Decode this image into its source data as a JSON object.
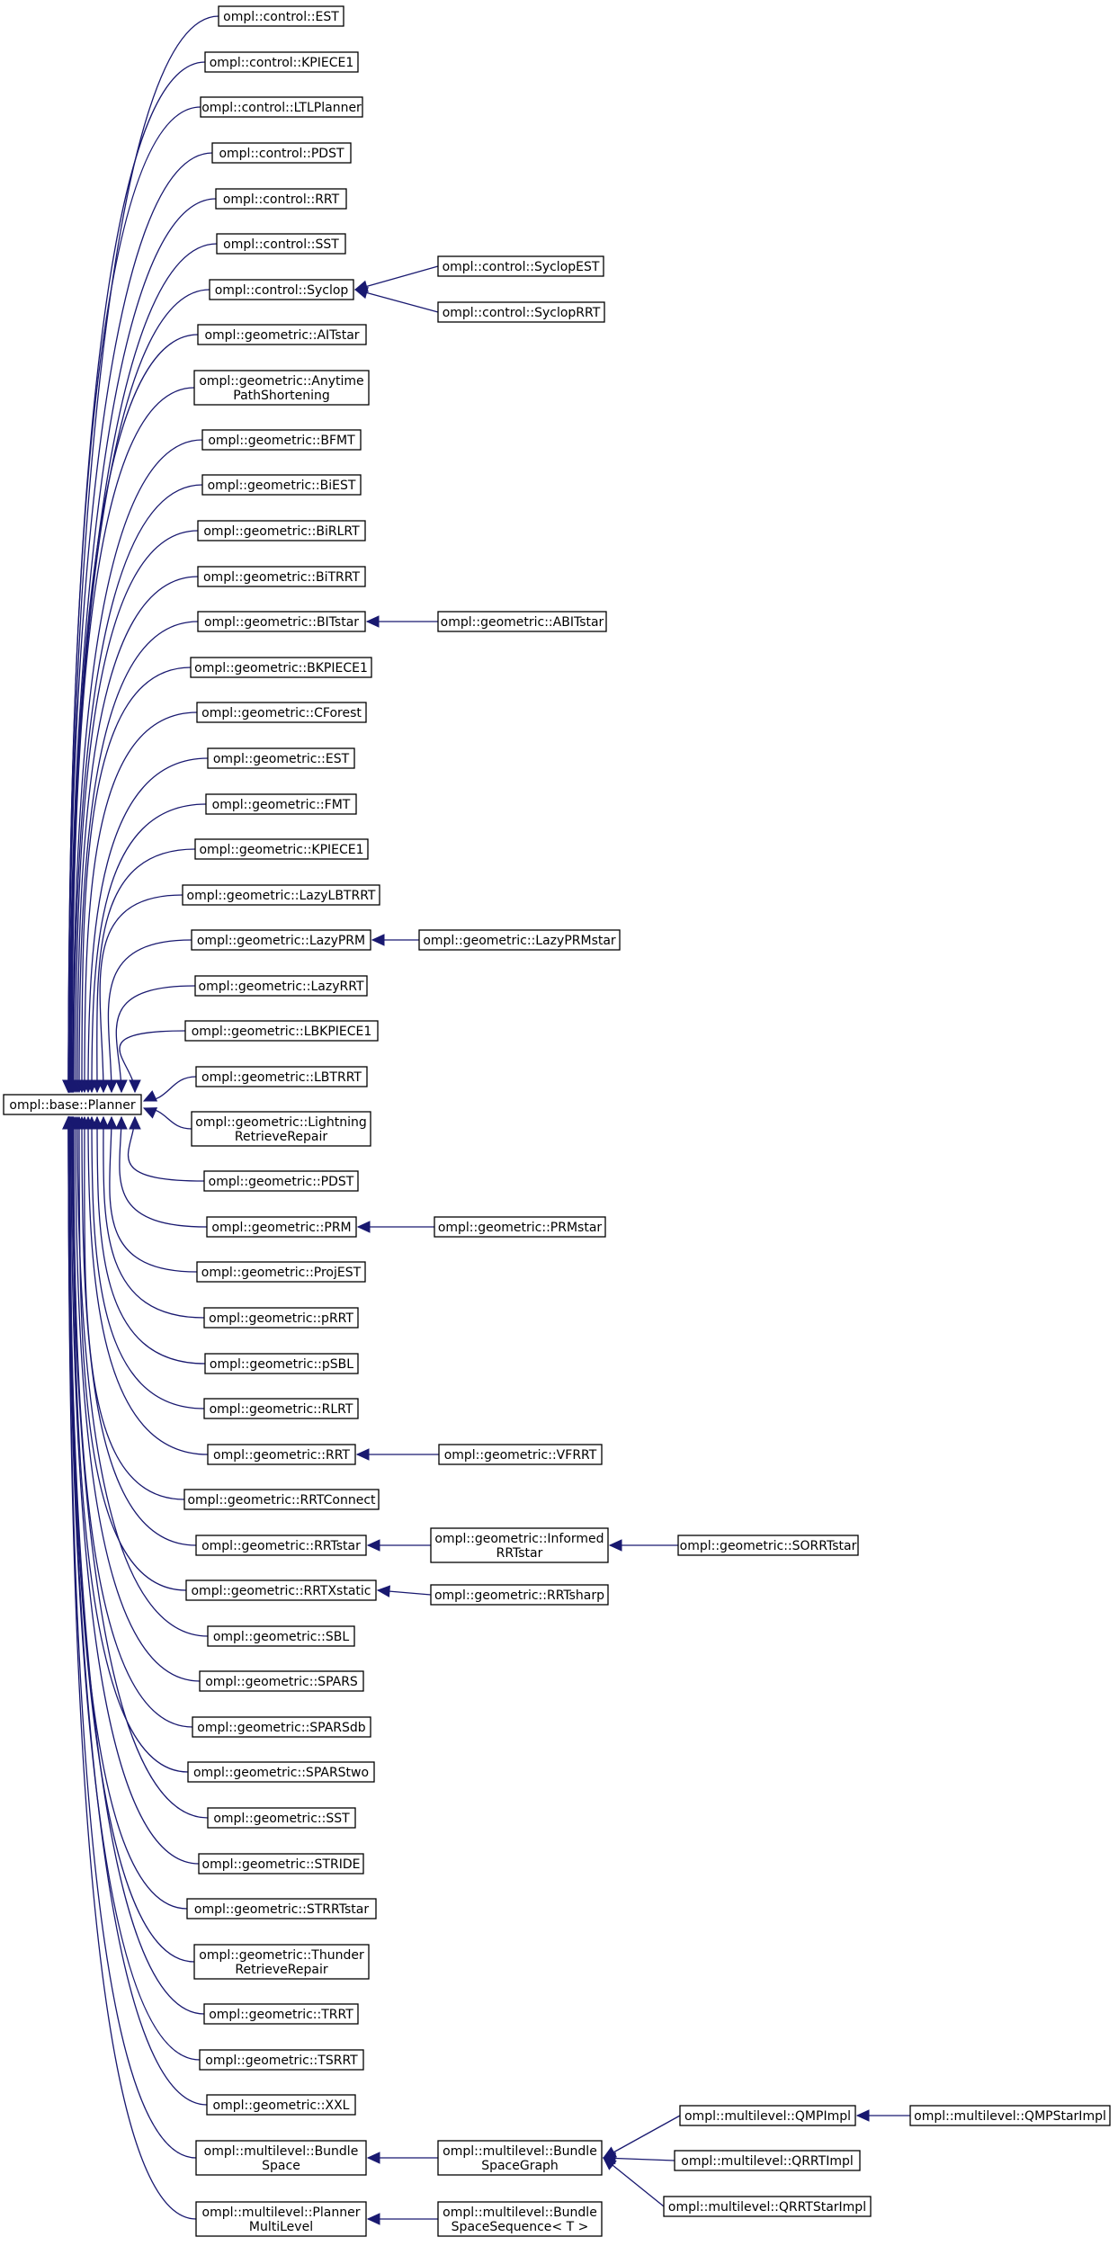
{
  "diagram": {
    "type": "inheritance-graph",
    "edge_color": "#191970",
    "nodes": [
      {
        "id": "base_planner",
        "label": [
          "ompl::base::Planner"
        ]
      },
      {
        "id": "c_est",
        "label": [
          "ompl::control::EST"
        ]
      },
      {
        "id": "c_kpiece1",
        "label": [
          "ompl::control::KPIECE1"
        ]
      },
      {
        "id": "c_ltlplanner",
        "label": [
          "ompl::control::LTLPlanner"
        ]
      },
      {
        "id": "c_pdst",
        "label": [
          "ompl::control::PDST"
        ]
      },
      {
        "id": "c_rrt",
        "label": [
          "ompl::control::RRT"
        ]
      },
      {
        "id": "c_sst",
        "label": [
          "ompl::control::SST"
        ]
      },
      {
        "id": "c_syclop",
        "label": [
          "ompl::control::Syclop"
        ]
      },
      {
        "id": "c_syclopest",
        "label": [
          "ompl::control::SyclopEST"
        ]
      },
      {
        "id": "c_sycloprrt",
        "label": [
          "ompl::control::SyclopRRT"
        ]
      },
      {
        "id": "g_aitstar",
        "label": [
          "ompl::geometric::AITstar"
        ]
      },
      {
        "id": "g_anytime",
        "label": [
          "ompl::geometric::Anytime",
          "PathShortening"
        ]
      },
      {
        "id": "g_bfmt",
        "label": [
          "ompl::geometric::BFMT"
        ]
      },
      {
        "id": "g_biest",
        "label": [
          "ompl::geometric::BiEST"
        ]
      },
      {
        "id": "g_birlrt",
        "label": [
          "ompl::geometric::BiRLRT"
        ]
      },
      {
        "id": "g_bitrrt",
        "label": [
          "ompl::geometric::BiTRRT"
        ]
      },
      {
        "id": "g_bitstar",
        "label": [
          "ompl::geometric::BITstar"
        ]
      },
      {
        "id": "g_abitstar",
        "label": [
          "ompl::geometric::ABITstar"
        ]
      },
      {
        "id": "g_bkpiece1",
        "label": [
          "ompl::geometric::BKPIECE1"
        ]
      },
      {
        "id": "g_cforest",
        "label": [
          "ompl::geometric::CForest"
        ]
      },
      {
        "id": "g_est",
        "label": [
          "ompl::geometric::EST"
        ]
      },
      {
        "id": "g_fmt",
        "label": [
          "ompl::geometric::FMT"
        ]
      },
      {
        "id": "g_kpiece1",
        "label": [
          "ompl::geometric::KPIECE1"
        ]
      },
      {
        "id": "g_lazylbtrrt",
        "label": [
          "ompl::geometric::LazyLBTRRT"
        ]
      },
      {
        "id": "g_lazyprm",
        "label": [
          "ompl::geometric::LazyPRM"
        ]
      },
      {
        "id": "g_lazyprmstar",
        "label": [
          "ompl::geometric::LazyPRMstar"
        ]
      },
      {
        "id": "g_lazyrrt",
        "label": [
          "ompl::geometric::LazyRRT"
        ]
      },
      {
        "id": "g_lbkpiece1",
        "label": [
          "ompl::geometric::LBKPIECE1"
        ]
      },
      {
        "id": "g_lbtrrt",
        "label": [
          "ompl::geometric::LBTRRT"
        ]
      },
      {
        "id": "g_lightning",
        "label": [
          "ompl::geometric::Lightning",
          "RetrieveRepair"
        ]
      },
      {
        "id": "g_pdst",
        "label": [
          "ompl::geometric::PDST"
        ]
      },
      {
        "id": "g_prm",
        "label": [
          "ompl::geometric::PRM"
        ]
      },
      {
        "id": "g_prmstar",
        "label": [
          "ompl::geometric::PRMstar"
        ]
      },
      {
        "id": "g_projest",
        "label": [
          "ompl::geometric::ProjEST"
        ]
      },
      {
        "id": "g_prrt",
        "label": [
          "ompl::geometric::pRRT"
        ]
      },
      {
        "id": "g_psbl",
        "label": [
          "ompl::geometric::pSBL"
        ]
      },
      {
        "id": "g_rlrt",
        "label": [
          "ompl::geometric::RLRT"
        ]
      },
      {
        "id": "g_rrt",
        "label": [
          "ompl::geometric::RRT"
        ]
      },
      {
        "id": "g_vfrrt",
        "label": [
          "ompl::geometric::VFRRT"
        ]
      },
      {
        "id": "g_rrtconnect",
        "label": [
          "ompl::geometric::RRTConnect"
        ]
      },
      {
        "id": "g_rrtstar",
        "label": [
          "ompl::geometric::RRTstar"
        ]
      },
      {
        "id": "g_informed",
        "label": [
          "ompl::geometric::Informed",
          "RRTstar"
        ]
      },
      {
        "id": "g_sorrtstar",
        "label": [
          "ompl::geometric::SORRTstar"
        ]
      },
      {
        "id": "g_rrtxstatic",
        "label": [
          "ompl::geometric::RRTXstatic"
        ]
      },
      {
        "id": "g_rrtsharp",
        "label": [
          "ompl::geometric::RRTsharp"
        ]
      },
      {
        "id": "g_sbl",
        "label": [
          "ompl::geometric::SBL"
        ]
      },
      {
        "id": "g_spars",
        "label": [
          "ompl::geometric::SPARS"
        ]
      },
      {
        "id": "g_sparsdb",
        "label": [
          "ompl::geometric::SPARSdb"
        ]
      },
      {
        "id": "g_sparstwo",
        "label": [
          "ompl::geometric::SPARStwo"
        ]
      },
      {
        "id": "g_sst",
        "label": [
          "ompl::geometric::SST"
        ]
      },
      {
        "id": "g_stride",
        "label": [
          "ompl::geometric::STRIDE"
        ]
      },
      {
        "id": "g_strrtstar",
        "label": [
          "ompl::geometric::STRRTstar"
        ]
      },
      {
        "id": "g_thunder",
        "label": [
          "ompl::geometric::Thunder",
          "RetrieveRepair"
        ]
      },
      {
        "id": "g_trrt",
        "label": [
          "ompl::geometric::TRRT"
        ]
      },
      {
        "id": "g_tsrrt",
        "label": [
          "ompl::geometric::TSRRT"
        ]
      },
      {
        "id": "g_xxl",
        "label": [
          "ompl::geometric::XXL"
        ]
      },
      {
        "id": "m_bundlespace",
        "label": [
          "ompl::multilevel::Bundle",
          "Space"
        ]
      },
      {
        "id": "m_bundlespacegraph",
        "label": [
          "ompl::multilevel::Bundle",
          "SpaceGraph"
        ]
      },
      {
        "id": "m_qmpimpl",
        "label": [
          "ompl::multilevel::QMPImpl"
        ]
      },
      {
        "id": "m_qmpstarimpl",
        "label": [
          "ompl::multilevel::QMPStarImpl"
        ]
      },
      {
        "id": "m_qrrtimpl",
        "label": [
          "ompl::multilevel::QRRTImpl"
        ]
      },
      {
        "id": "m_qrrtstarimpl",
        "label": [
          "ompl::multilevel::QRRTStarImpl"
        ]
      },
      {
        "id": "m_plannermultilevel",
        "label": [
          "ompl::multilevel::Planner",
          "MultiLevel"
        ]
      },
      {
        "id": "m_bundlespacesequence",
        "label": [
          "ompl::multilevel::Bundle",
          "SpaceSequence< T >"
        ]
      }
    ],
    "edges": [
      {
        "from": "c_est",
        "to": "base_planner"
      },
      {
        "from": "c_kpiece1",
        "to": "base_planner"
      },
      {
        "from": "c_ltlplanner",
        "to": "base_planner"
      },
      {
        "from": "c_pdst",
        "to": "base_planner"
      },
      {
        "from": "c_rrt",
        "to": "base_planner"
      },
      {
        "from": "c_sst",
        "to": "base_planner"
      },
      {
        "from": "c_syclop",
        "to": "base_planner"
      },
      {
        "from": "c_syclopest",
        "to": "c_syclop"
      },
      {
        "from": "c_sycloprrt",
        "to": "c_syclop"
      },
      {
        "from": "g_aitstar",
        "to": "base_planner"
      },
      {
        "from": "g_anytime",
        "to": "base_planner"
      },
      {
        "from": "g_bfmt",
        "to": "base_planner"
      },
      {
        "from": "g_biest",
        "to": "base_planner"
      },
      {
        "from": "g_birlrt",
        "to": "base_planner"
      },
      {
        "from": "g_bitrrt",
        "to": "base_planner"
      },
      {
        "from": "g_bitstar",
        "to": "base_planner"
      },
      {
        "from": "g_abitstar",
        "to": "g_bitstar"
      },
      {
        "from": "g_bkpiece1",
        "to": "base_planner"
      },
      {
        "from": "g_cforest",
        "to": "base_planner"
      },
      {
        "from": "g_est",
        "to": "base_planner"
      },
      {
        "from": "g_fmt",
        "to": "base_planner"
      },
      {
        "from": "g_kpiece1",
        "to": "base_planner"
      },
      {
        "from": "g_lazylbtrrt",
        "to": "base_planner"
      },
      {
        "from": "g_lazyprm",
        "to": "base_planner"
      },
      {
        "from": "g_lazyprmstar",
        "to": "g_lazyprm"
      },
      {
        "from": "g_lazyrrt",
        "to": "base_planner"
      },
      {
        "from": "g_lbkpiece1",
        "to": "base_planner"
      },
      {
        "from": "g_lbtrrt",
        "to": "base_planner"
      },
      {
        "from": "g_lightning",
        "to": "base_planner"
      },
      {
        "from": "g_pdst",
        "to": "base_planner"
      },
      {
        "from": "g_prm",
        "to": "base_planner"
      },
      {
        "from": "g_prmstar",
        "to": "g_prm"
      },
      {
        "from": "g_projest",
        "to": "base_planner"
      },
      {
        "from": "g_prrt",
        "to": "base_planner"
      },
      {
        "from": "g_psbl",
        "to": "base_planner"
      },
      {
        "from": "g_rlrt",
        "to": "base_planner"
      },
      {
        "from": "g_rrt",
        "to": "base_planner"
      },
      {
        "from": "g_vfrrt",
        "to": "g_rrt"
      },
      {
        "from": "g_rrtconnect",
        "to": "base_planner"
      },
      {
        "from": "g_rrtstar",
        "to": "base_planner"
      },
      {
        "from": "g_informed",
        "to": "g_rrtstar"
      },
      {
        "from": "g_sorrtstar",
        "to": "g_informed"
      },
      {
        "from": "g_rrtxstatic",
        "to": "base_planner"
      },
      {
        "from": "g_rrtsharp",
        "to": "g_rrtxstatic"
      },
      {
        "from": "g_sbl",
        "to": "base_planner"
      },
      {
        "from": "g_spars",
        "to": "base_planner"
      },
      {
        "from": "g_sparsdb",
        "to": "base_planner"
      },
      {
        "from": "g_sparstwo",
        "to": "base_planner"
      },
      {
        "from": "g_sst",
        "to": "base_planner"
      },
      {
        "from": "g_stride",
        "to": "base_planner"
      },
      {
        "from": "g_strrtstar",
        "to": "base_planner"
      },
      {
        "from": "g_thunder",
        "to": "base_planner"
      },
      {
        "from": "g_trrt",
        "to": "base_planner"
      },
      {
        "from": "g_tsrrt",
        "to": "base_planner"
      },
      {
        "from": "g_xxl",
        "to": "base_planner"
      },
      {
        "from": "m_bundlespace",
        "to": "base_planner"
      },
      {
        "from": "m_bundlespacegraph",
        "to": "m_bundlespace"
      },
      {
        "from": "m_qmpimpl",
        "to": "m_bundlespacegraph"
      },
      {
        "from": "m_qmpstarimpl",
        "to": "m_qmpimpl"
      },
      {
        "from": "m_qrrtimpl",
        "to": "m_bundlespacegraph"
      },
      {
        "from": "m_qrrtstarimpl",
        "to": "m_bundlespacegraph"
      },
      {
        "from": "m_plannermultilevel",
        "to": "base_planner"
      },
      {
        "from": "m_bundlespacesequence",
        "to": "m_plannermultilevel"
      }
    ]
  }
}
